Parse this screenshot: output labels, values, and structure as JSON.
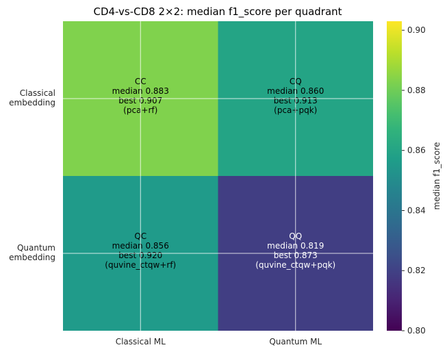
{
  "chart_data": {
    "type": "heatmap",
    "title": "CD4-vs-CD8 2×2: median f1_score per quadrant",
    "x_categories": [
      "Classical ML",
      "Quantum ML"
    ],
    "y_categories": [
      [
        "Classical",
        "embedding"
      ],
      [
        "Quantum",
        "embedding"
      ]
    ],
    "cells": [
      [
        {
          "code": "CC",
          "median": 0.883,
          "median_text": "median 0.883",
          "best_text": "best 0.907",
          "method_text": "(pca+rf)"
        },
        {
          "code": "CQ",
          "median": 0.86,
          "median_text": "median 0.860",
          "best_text": "best 0.913",
          "method_text": "(pca+pqk)"
        }
      ],
      [
        {
          "code": "QC",
          "median": 0.856,
          "median_text": "median 0.856",
          "best_text": "best 0.920",
          "method_text": "(quvine_ctqw+rf)"
        },
        {
          "code": "QQ",
          "median": 0.819,
          "median_text": "median 0.819",
          "best_text": "best 0.873",
          "method_text": "(quvine_ctqw+pqk)"
        }
      ]
    ],
    "colorbar": {
      "label": "median f1_score",
      "range": [
        0.8,
        0.903
      ],
      "ticks": [
        "0.80",
        "0.82",
        "0.84",
        "0.86",
        "0.88",
        "0.90"
      ],
      "colormap": "viridis"
    },
    "grid": true
  }
}
